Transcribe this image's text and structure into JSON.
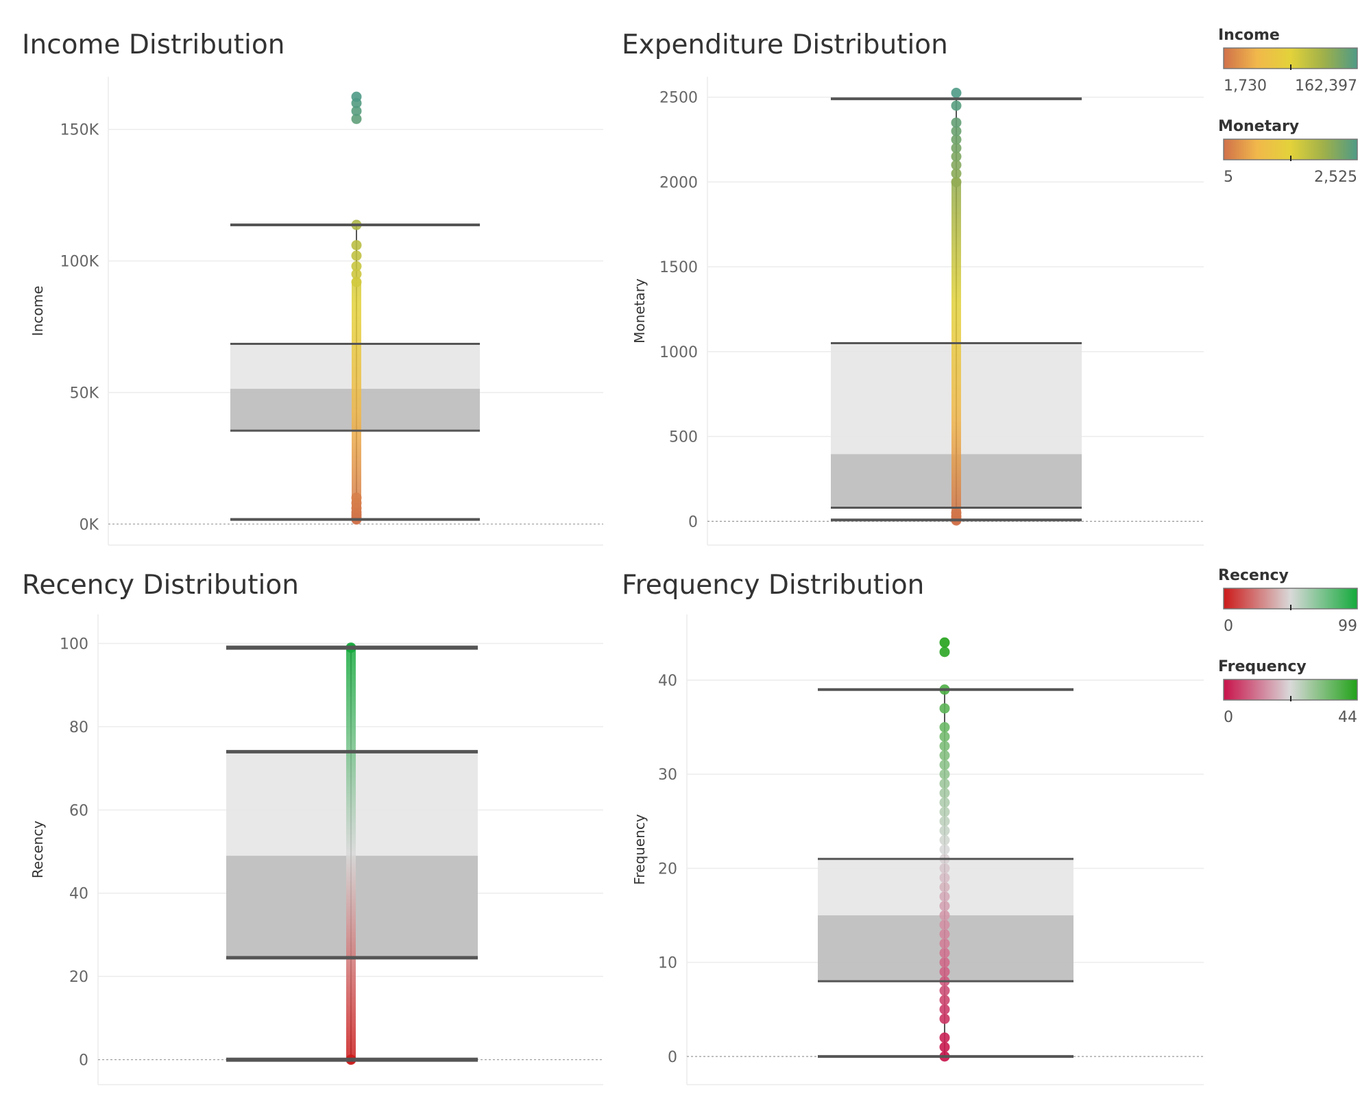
{
  "chart_data": [
    {
      "type": "boxplot",
      "title": "Income Distribution",
      "ylabel": "Income",
      "ylim": [
        -8000,
        170000
      ],
      "ticks": [
        0,
        50000,
        100000,
        150000
      ],
      "tick_labels": [
        "0K",
        "50K",
        "100K",
        "150K"
      ],
      "box": {
        "whisker_low": 1730,
        "q1": 35500,
        "median": 51400,
        "q3": 68500,
        "whisker_high": 113700
      },
      "points": [
        1730,
        2500,
        3500,
        4500,
        6000,
        8000,
        10000,
        92000,
        95000,
        98000,
        102000,
        106000,
        113700,
        154000,
        157000,
        160000,
        162397
      ],
      "dense_range": [
        1730,
        92000
      ],
      "gradient": [
        "#d0714a",
        "#f1b84b",
        "#e3d23a",
        "#9fb04a",
        "#4e9a86"
      ],
      "gradient_range": [
        1730,
        162397
      ]
    },
    {
      "type": "boxplot",
      "title": "Expenditure Distribution",
      "ylabel": "Monetary",
      "ylim": [
        -140,
        2620
      ],
      "ticks": [
        0,
        500,
        1000,
        1500,
        2000,
        2500
      ],
      "tick_labels": [
        "0",
        "500",
        "1000",
        "1500",
        "2000",
        "2500"
      ],
      "box": {
        "whisker_low": 8,
        "q1": 80,
        "median": 396,
        "q3": 1050,
        "whisker_high": 2490
      },
      "points": [
        5,
        15,
        30,
        50,
        2000,
        2050,
        2100,
        2150,
        2200,
        2250,
        2300,
        2350,
        2450,
        2525
      ],
      "dense_range": [
        5,
        2000
      ],
      "gradient": [
        "#d0714a",
        "#f1b84b",
        "#e3d23a",
        "#9fb04a",
        "#4e9a86"
      ],
      "gradient_range": [
        5,
        2525
      ]
    },
    {
      "type": "boxplot",
      "title": "Recency Distribution",
      "ylabel": "Recency",
      "ylim": [
        -6,
        107
      ],
      "ticks": [
        0,
        20,
        40,
        60,
        80,
        100
      ],
      "tick_labels": [
        "0",
        "20",
        "40",
        "60",
        "80",
        "100"
      ],
      "box": {
        "whisker_low": 0,
        "q1": 24.5,
        "median": 49,
        "q3": 74,
        "whisker_high": 99
      },
      "points": [
        0,
        99
      ],
      "dense_range": [
        0,
        99
      ],
      "gradient": [
        "#cc1a1a",
        "#d9d9d9",
        "#14aa3c"
      ],
      "gradient_range": [
        0,
        99
      ]
    },
    {
      "type": "boxplot",
      "title": "Frequency Distribution",
      "ylabel": "Frequency",
      "ylim": [
        -3,
        47
      ],
      "ticks": [
        0,
        10,
        20,
        30,
        40
      ],
      "tick_labels": [
        "0",
        "10",
        "20",
        "30",
        "40"
      ],
      "box": {
        "whisker_low": 0,
        "q1": 8,
        "median": 15,
        "q3": 21,
        "whisker_high": 39
      },
      "points": [
        0,
        1,
        2,
        4,
        5,
        6,
        7,
        8,
        9,
        10,
        11,
        12,
        13,
        14,
        15,
        16,
        17,
        18,
        19,
        20,
        21,
        22,
        23,
        24,
        25,
        26,
        27,
        28,
        29,
        30,
        31,
        32,
        33,
        34,
        35,
        37,
        39,
        43,
        44
      ],
      "dense_range": [
        0,
        0
      ],
      "gradient": [
        "#c8124a",
        "#d9d9d9",
        "#22a21a"
      ],
      "gradient_range": [
        0,
        44
      ]
    }
  ],
  "legends": [
    {
      "title": "Income",
      "min": "1,730",
      "max": "162,397",
      "gradient": [
        "#d0714a",
        "#f1b84b",
        "#e3d23a",
        "#9fb04a",
        "#4e9a86"
      ]
    },
    {
      "title": "Monetary",
      "min": "5",
      "max": "2,525",
      "gradient": [
        "#d0714a",
        "#f1b84b",
        "#e3d23a",
        "#9fb04a",
        "#4e9a86"
      ]
    },
    {
      "title": "Recency",
      "min": "0",
      "max": "99",
      "gradient": [
        "#cc1a1a",
        "#d9d9d9",
        "#14aa3c"
      ]
    },
    {
      "title": "Frequency",
      "min": "0",
      "max": "44",
      "gradient": [
        "#c8124a",
        "#d9d9d9",
        "#22a21a"
      ]
    }
  ]
}
